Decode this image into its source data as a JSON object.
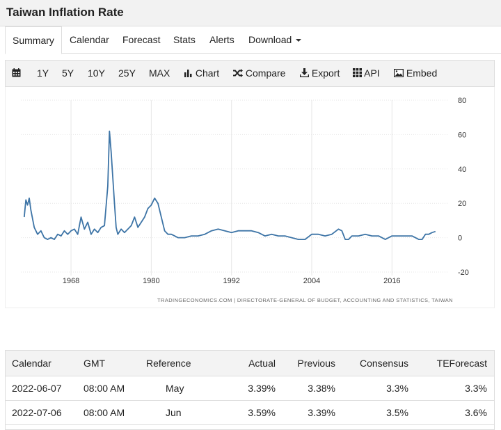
{
  "page": {
    "title": "Taiwan Inflation Rate"
  },
  "tabs": [
    {
      "label": "Summary",
      "active": true
    },
    {
      "label": "Calendar"
    },
    {
      "label": "Forecast"
    },
    {
      "label": "Stats"
    },
    {
      "label": "Alerts"
    },
    {
      "label": "Download"
    }
  ],
  "toolbar": {
    "ranges": [
      "1Y",
      "5Y",
      "10Y",
      "25Y",
      "MAX"
    ],
    "chart_label": "Chart",
    "compare_label": "Compare",
    "export_label": "Export",
    "api_label": "API",
    "embed_label": "Embed"
  },
  "chart_data": {
    "type": "line",
    "x": [
      1961.0,
      1961.25,
      1961.5,
      1961.75,
      1962.0,
      1962.5,
      1963.0,
      1963.5,
      1964.0,
      1964.5,
      1965.0,
      1965.5,
      1966.0,
      1966.5,
      1967.0,
      1967.5,
      1968.0,
      1968.5,
      1969.0,
      1969.5,
      1970.0,
      1970.5,
      1971.0,
      1971.5,
      1972.0,
      1972.5,
      1973.0,
      1973.5,
      1973.75,
      1974.0,
      1974.25,
      1974.5,
      1974.75,
      1975.0,
      1975.5,
      1976.0,
      1976.5,
      1977.0,
      1977.5,
      1978.0,
      1978.5,
      1979.0,
      1979.5,
      1980.0,
      1980.5,
      1981.0,
      1981.5,
      1982.0,
      1982.5,
      1983.0,
      1983.5,
      1984.0,
      1985.0,
      1986.0,
      1987.0,
      1988.0,
      1989.0,
      1990.0,
      1991.0,
      1992.0,
      1993.0,
      1994.0,
      1995.0,
      1996.0,
      1997.0,
      1998.0,
      1999.0,
      2000.0,
      2001.0,
      2002.0,
      2003.0,
      2004.0,
      2005.0,
      2006.0,
      2007.0,
      2008.0,
      2008.5,
      2009.0,
      2009.5,
      2010.0,
      2011.0,
      2012.0,
      2013.0,
      2014.0,
      2015.0,
      2016.0,
      2017.0,
      2018.0,
      2019.0,
      2020.0,
      2020.5,
      2021.0,
      2021.5,
      2022.0,
      2022.5
    ],
    "y": [
      12,
      22,
      19,
      23,
      16,
      6,
      2,
      4,
      0,
      -1,
      0,
      -1,
      2,
      1,
      4,
      2,
      4,
      5,
      2,
      12,
      5,
      9,
      2,
      5,
      3,
      6,
      7,
      30,
      62,
      50,
      35,
      20,
      6,
      2,
      5,
      3,
      5,
      7,
      12,
      6,
      9,
      12,
      17,
      19,
      23,
      20,
      12,
      4,
      2,
      2,
      1,
      0,
      0,
      1,
      1,
      2,
      4,
      5,
      4,
      3,
      4,
      4,
      4,
      3,
      1,
      2,
      1,
      1,
      0,
      -1,
      -1,
      2,
      2,
      1,
      2,
      5,
      4,
      -1,
      -1,
      1,
      1,
      2,
      1,
      1,
      -1,
      1,
      1,
      1,
      1,
      -1,
      -1,
      2,
      2,
      3,
      3.6
    ],
    "ylim": [
      -20,
      80
    ],
    "yticks": [
      80,
      60,
      40,
      20,
      0,
      -20
    ],
    "xlim": [
      1960.5,
      2024.5
    ],
    "xticks": [
      "1968",
      "1980",
      "1992",
      "2004",
      "2016"
    ],
    "grid": true,
    "line_color": "#3d74a6",
    "attribution": "TRADINGECONOMICS.COM  |  DIRECTORATE-GENERAL OF BUDGET, ACCOUNTING AND STATISTICS, TAIWAN"
  },
  "calendar_table": {
    "headers": [
      "Calendar",
      "GMT",
      "Reference",
      "Actual",
      "Previous",
      "Consensus",
      "TEForecast"
    ],
    "rows": [
      [
        "2022-06-07",
        "08:00 AM",
        "May",
        "3.39%",
        "3.38%",
        "3.3%",
        "3.3%"
      ],
      [
        "2022-07-06",
        "08:00 AM",
        "Jun",
        "3.59%",
        "3.39%",
        "3.5%",
        "3.6%"
      ]
    ]
  }
}
